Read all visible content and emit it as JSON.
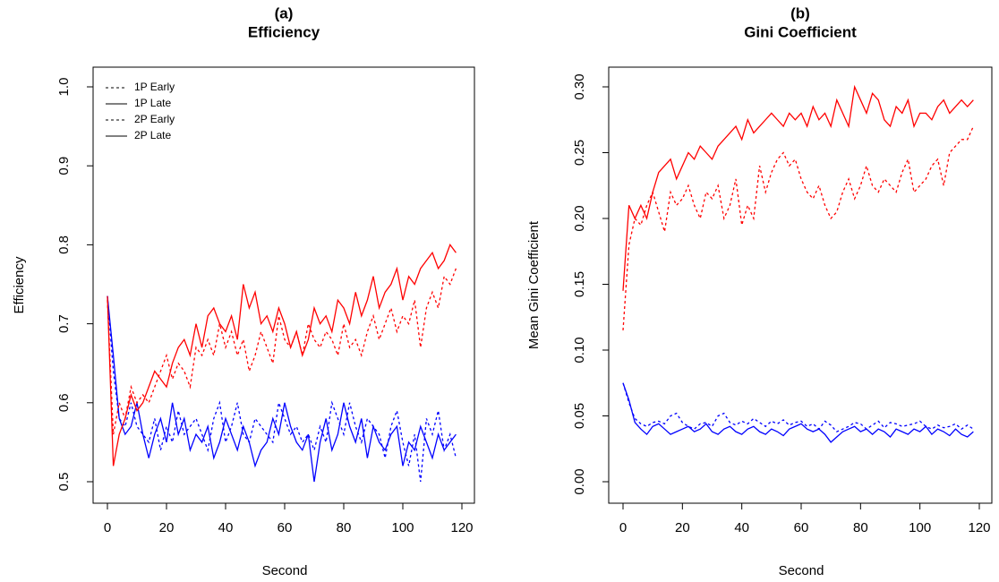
{
  "chart_data": [
    {
      "type": "line",
      "title": "(a)",
      "subtitle": "Efficiency",
      "xlabel": "Second",
      "ylabel": "Efficiency",
      "xlim": [
        0,
        120
      ],
      "xticks": [
        0,
        20,
        40,
        60,
        80,
        100,
        120
      ],
      "ylim": [
        0.5,
        1
      ],
      "yticks": [
        0.5,
        0.6,
        0.7,
        0.8,
        0.9,
        {
          "value": 1,
          "label": "1.0"
        }
      ],
      "legend": "top-left",
      "x": [
        0,
        2,
        4,
        6,
        8,
        10,
        12,
        14,
        16,
        18,
        20,
        22,
        24,
        26,
        28,
        30,
        32,
        34,
        36,
        38,
        40,
        42,
        44,
        46,
        48,
        50,
        52,
        54,
        56,
        58,
        60,
        62,
        64,
        66,
        68,
        70,
        72,
        74,
        76,
        78,
        80,
        82,
        84,
        86,
        88,
        90,
        92,
        94,
        96,
        98,
        100,
        102,
        104,
        106,
        108,
        110,
        112,
        114,
        116,
        118
      ],
      "series": [
        {
          "name": "1P Early",
          "color": "#0000ff",
          "dashed": true,
          "values": [
            0.735,
            0.64,
            0.58,
            0.57,
            0.6,
            0.57,
            0.56,
            0.55,
            0.58,
            0.54,
            0.57,
            0.55,
            0.59,
            0.56,
            0.57,
            0.58,
            0.56,
            0.54,
            0.58,
            0.6,
            0.55,
            0.57,
            0.6,
            0.56,
            0.55,
            0.58,
            0.57,
            0.56,
            0.55,
            0.6,
            0.58,
            0.56,
            0.57,
            0.55,
            0.56,
            0.54,
            0.57,
            0.55,
            0.6,
            0.58,
            0.56,
            0.6,
            0.57,
            0.55,
            0.58,
            0.57,
            0.56,
            0.53,
            0.57,
            0.59,
            0.55,
            0.52,
            0.56,
            0.5,
            0.58,
            0.56,
            0.59,
            0.54,
            0.56,
            0.53
          ]
        },
        {
          "name": "1P Late",
          "color": "#0000ff",
          "dashed": false,
          "values": [
            0.735,
            0.66,
            0.58,
            0.56,
            0.57,
            0.6,
            0.56,
            0.53,
            0.56,
            0.58,
            0.55,
            0.6,
            0.56,
            0.58,
            0.54,
            0.56,
            0.55,
            0.57,
            0.53,
            0.55,
            0.58,
            0.56,
            0.54,
            0.57,
            0.55,
            0.52,
            0.54,
            0.55,
            0.58,
            0.56,
            0.6,
            0.57,
            0.55,
            0.54,
            0.56,
            0.5,
            0.55,
            0.58,
            0.54,
            0.56,
            0.6,
            0.57,
            0.55,
            0.58,
            0.53,
            0.57,
            0.55,
            0.54,
            0.56,
            0.57,
            0.52,
            0.55,
            0.54,
            0.57,
            0.55,
            0.53,
            0.56,
            0.54,
            0.55,
            0.56
          ]
        },
        {
          "name": "2P Early",
          "color": "#ff0000",
          "dashed": true,
          "values": [
            0.73,
            0.56,
            0.6,
            0.58,
            0.62,
            0.6,
            0.61,
            0.6,
            0.62,
            0.64,
            0.66,
            0.63,
            0.65,
            0.64,
            0.62,
            0.67,
            0.66,
            0.68,
            0.66,
            0.7,
            0.67,
            0.69,
            0.66,
            0.68,
            0.64,
            0.66,
            0.69,
            0.67,
            0.65,
            0.71,
            0.68,
            0.67,
            0.69,
            0.66,
            0.7,
            0.68,
            0.67,
            0.69,
            0.68,
            0.66,
            0.7,
            0.67,
            0.68,
            0.66,
            0.69,
            0.71,
            0.68,
            0.7,
            0.72,
            0.69,
            0.71,
            0.7,
            0.73,
            0.67,
            0.72,
            0.74,
            0.72,
            0.76,
            0.75,
            0.77
          ]
        },
        {
          "name": "2P Late",
          "color": "#ff0000",
          "dashed": false,
          "values": [
            0.735,
            0.52,
            0.56,
            0.58,
            0.61,
            0.59,
            0.6,
            0.62,
            0.64,
            0.63,
            0.62,
            0.65,
            0.67,
            0.68,
            0.66,
            0.7,
            0.67,
            0.71,
            0.72,
            0.7,
            0.69,
            0.71,
            0.68,
            0.75,
            0.72,
            0.74,
            0.7,
            0.71,
            0.69,
            0.72,
            0.7,
            0.67,
            0.69,
            0.66,
            0.68,
            0.72,
            0.7,
            0.71,
            0.69,
            0.73,
            0.72,
            0.7,
            0.74,
            0.71,
            0.73,
            0.76,
            0.72,
            0.74,
            0.75,
            0.77,
            0.73,
            0.76,
            0.75,
            0.77,
            0.78,
            0.79,
            0.77,
            0.78,
            0.8,
            0.79
          ]
        }
      ]
    },
    {
      "type": "line",
      "title": "(b)",
      "subtitle": "Gini Coefficient",
      "xlabel": "Second",
      "ylabel": "Mean Gini Coefficient",
      "xlim": [
        0,
        120
      ],
      "xticks": [
        0,
        20,
        40,
        60,
        80,
        100,
        120
      ],
      "ylim": [
        0,
        0.3
      ],
      "yticks": [
        {
          "value": 0,
          "label": "0.00"
        },
        0.05,
        {
          "value": 0.1,
          "label": "0.10"
        },
        0.15,
        {
          "value": 0.2,
          "label": "0.20"
        },
        0.25,
        {
          "value": 0.3,
          "label": "0.30"
        }
      ],
      "x": [
        0,
        2,
        4,
        6,
        8,
        10,
        12,
        14,
        16,
        18,
        20,
        22,
        24,
        26,
        28,
        30,
        32,
        34,
        36,
        38,
        40,
        42,
        44,
        46,
        48,
        50,
        52,
        54,
        56,
        58,
        60,
        62,
        64,
        66,
        68,
        70,
        72,
        74,
        76,
        78,
        80,
        82,
        84,
        86,
        88,
        90,
        92,
        94,
        96,
        98,
        100,
        102,
        104,
        106,
        108,
        110,
        112,
        114,
        116,
        118
      ],
      "series": [
        {
          "color": "#0000ff",
          "dashed": true,
          "values": [
            0.075,
            0.06,
            0.048,
            0.044,
            0.042,
            0.045,
            0.046,
            0.044,
            0.05,
            0.052,
            0.045,
            0.042,
            0.04,
            0.044,
            0.045,
            0.042,
            0.05,
            0.052,
            0.045,
            0.043,
            0.046,
            0.044,
            0.048,
            0.045,
            0.042,
            0.046,
            0.044,
            0.047,
            0.043,
            0.045,
            0.046,
            0.042,
            0.044,
            0.04,
            0.046,
            0.043,
            0.038,
            0.04,
            0.042,
            0.045,
            0.044,
            0.04,
            0.043,
            0.046,
            0.041,
            0.045,
            0.044,
            0.042,
            0.043,
            0.044,
            0.046,
            0.042,
            0.04,
            0.043,
            0.041,
            0.042,
            0.044,
            0.04,
            0.043,
            0.04
          ]
        },
        {
          "color": "#0000ff",
          "dashed": false,
          "values": [
            0.075,
            0.062,
            0.045,
            0.04,
            0.036,
            0.042,
            0.044,
            0.04,
            0.036,
            0.038,
            0.04,
            0.042,
            0.038,
            0.04,
            0.044,
            0.038,
            0.036,
            0.04,
            0.042,
            0.038,
            0.036,
            0.04,
            0.042,
            0.038,
            0.036,
            0.04,
            0.038,
            0.035,
            0.04,
            0.042,
            0.044,
            0.04,
            0.038,
            0.04,
            0.036,
            0.03,
            0.034,
            0.038,
            0.04,
            0.042,
            0.038,
            0.04,
            0.036,
            0.04,
            0.038,
            0.034,
            0.04,
            0.038,
            0.036,
            0.04,
            0.038,
            0.042,
            0.036,
            0.04,
            0.038,
            0.035,
            0.04,
            0.036,
            0.034,
            0.038
          ]
        },
        {
          "color": "#ff0000",
          "dashed": true,
          "values": [
            0.115,
            0.18,
            0.2,
            0.195,
            0.21,
            0.22,
            0.205,
            0.19,
            0.22,
            0.21,
            0.215,
            0.225,
            0.21,
            0.2,
            0.22,
            0.215,
            0.225,
            0.2,
            0.21,
            0.23,
            0.195,
            0.21,
            0.2,
            0.24,
            0.22,
            0.235,
            0.245,
            0.25,
            0.24,
            0.245,
            0.23,
            0.22,
            0.215,
            0.225,
            0.21,
            0.2,
            0.205,
            0.22,
            0.23,
            0.215,
            0.225,
            0.24,
            0.225,
            0.22,
            0.23,
            0.225,
            0.22,
            0.235,
            0.245,
            0.22,
            0.225,
            0.23,
            0.24,
            0.245,
            0.225,
            0.25,
            0.255,
            0.26,
            0.26,
            0.27
          ]
        },
        {
          "color": "#ff0000",
          "dashed": false,
          "values": [
            0.145,
            0.21,
            0.2,
            0.21,
            0.2,
            0.22,
            0.235,
            0.24,
            0.245,
            0.23,
            0.24,
            0.25,
            0.245,
            0.255,
            0.25,
            0.245,
            0.255,
            0.26,
            0.265,
            0.27,
            0.26,
            0.275,
            0.265,
            0.27,
            0.275,
            0.28,
            0.275,
            0.27,
            0.28,
            0.275,
            0.28,
            0.27,
            0.285,
            0.275,
            0.28,
            0.27,
            0.29,
            0.28,
            0.27,
            0.3,
            0.29,
            0.28,
            0.295,
            0.29,
            0.275,
            0.27,
            0.285,
            0.28,
            0.29,
            0.27,
            0.28,
            0.28,
            0.275,
            0.285,
            0.29,
            0.28,
            0.285,
            0.29,
            0.285,
            0.29
          ]
        }
      ]
    }
  ]
}
